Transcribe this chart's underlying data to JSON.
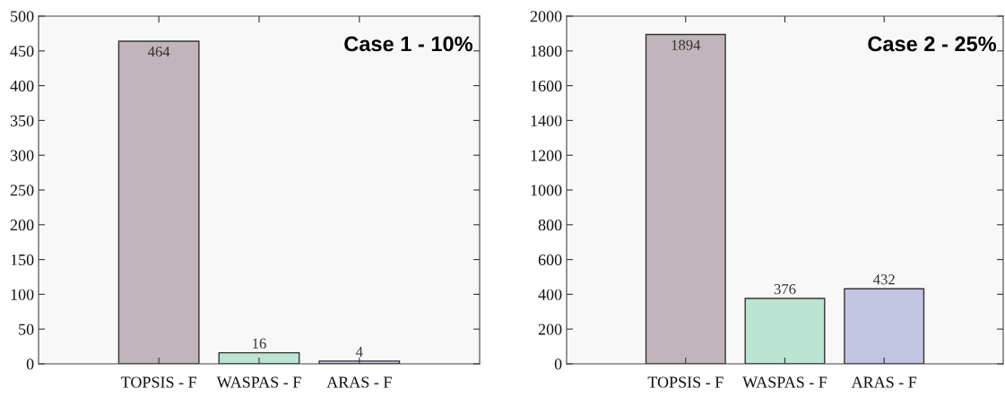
{
  "chart_data": [
    {
      "type": "bar",
      "title": "Case 1 - 10%",
      "categories": [
        "TOPSIS - F",
        "WASPAS - F",
        "ARAS - F"
      ],
      "values": [
        464,
        16,
        4
      ],
      "colors": [
        "#c2b4bb",
        "#bbe5d2",
        "#c3c3e2"
      ],
      "ylim": [
        0,
        500
      ],
      "yticks": [
        0,
        50,
        100,
        150,
        200,
        250,
        300,
        350,
        400,
        450,
        500
      ],
      "data_labels": true,
      "grid": false,
      "legend": false
    },
    {
      "type": "bar",
      "title": "Case 2 - 25%",
      "categories": [
        "TOPSIS - F",
        "WASPAS - F",
        "ARAS - F"
      ],
      "values": [
        1894,
        376,
        432
      ],
      "colors": [
        "#c2b4bb",
        "#bbe5d2",
        "#c3c3e2"
      ],
      "ylim": [
        0,
        2000
      ],
      "yticks": [
        0,
        200,
        400,
        600,
        800,
        1000,
        1200,
        1400,
        1600,
        1800,
        2000
      ],
      "data_labels": true,
      "grid": false,
      "legend": false
    }
  ]
}
